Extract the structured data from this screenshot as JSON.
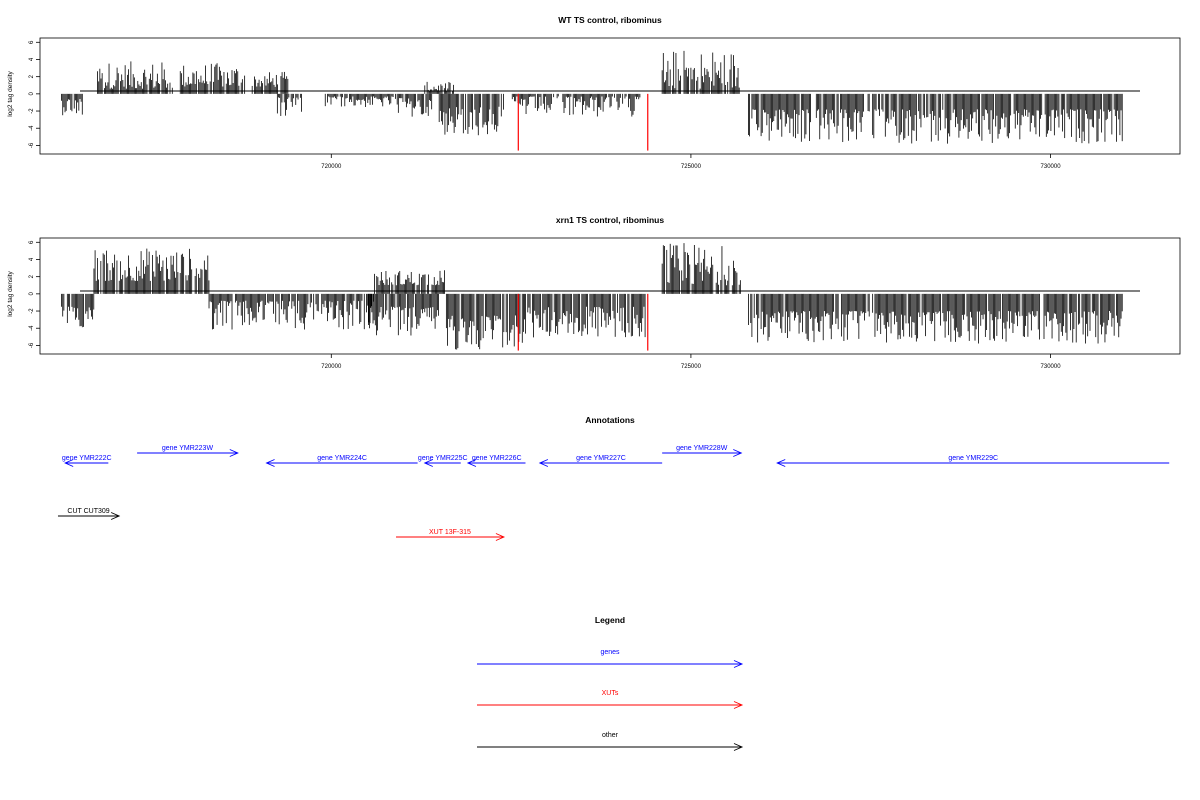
{
  "chart_data": [
    {
      "type": "bar",
      "title": "WT TS control, ribominus",
      "ylabel": "log2 tag density",
      "xlabel": "",
      "ylim": [
        -7,
        6.5
      ],
      "xlim": [
        715950,
        731800
      ],
      "x_ticks": [
        "720000",
        "725000",
        "730000"
      ],
      "y_ticks": [
        "6",
        "4",
        "2",
        "0",
        "-2",
        "-4",
        "-6"
      ],
      "grid": false,
      "baseline": 0,
      "highlight_color": "#ff0000",
      "bar_color": "#000000",
      "series": [
        {
          "segments": [
            {
              "from": 716250,
              "to": 716550,
              "min": -2.5,
              "max": -0.5
            },
            {
              "from": 716750,
              "to": 717800,
              "min": 0.6,
              "max": 3.8
            },
            {
              "from": 717900,
              "to": 718800,
              "min": 0.8,
              "max": 3.6
            },
            {
              "from": 718900,
              "to": 719400,
              "min": 0.8,
              "max": 2.6
            },
            {
              "from": 719250,
              "to": 719600,
              "min": -2.6,
              "max": -0.4
            },
            {
              "from": 719900,
              "to": 720900,
              "min": -1.6,
              "max": -0.3
            },
            {
              "from": 720900,
              "to": 721400,
              "min": -3.0,
              "max": -0.5
            },
            {
              "from": 721300,
              "to": 721700,
              "min": 0.3,
              "max": 1.4
            },
            {
              "from": 721500,
              "to": 722400,
              "min": -5.0,
              "max": -1.5
            },
            {
              "from": 722500,
              "to": 724300,
              "min": -2.8,
              "max": -0.3
            },
            {
              "from": 724600,
              "to": 725700,
              "min": 0.6,
              "max": 5.2
            },
            {
              "from": 725800,
              "to": 731000,
              "min": -5.8,
              "max": -1.8
            }
          ],
          "highlights": [
            {
              "x": 722600,
              "y": -6.6
            },
            {
              "x": 724400,
              "y": -6.6
            }
          ]
        }
      ]
    },
    {
      "type": "bar",
      "title": "xrn1 TS control, ribominus",
      "ylabel": "log2 tag density",
      "xlabel": "",
      "ylim": [
        -7,
        6.5
      ],
      "xlim": [
        715950,
        731800
      ],
      "x_ticks": [
        "720000",
        "725000",
        "730000"
      ],
      "y_ticks": [
        "6",
        "4",
        "2",
        "0",
        "-2",
        "-4",
        "-6"
      ],
      "grid": false,
      "baseline": 0,
      "highlight_color": "#ff0000",
      "bar_color": "#000000",
      "series": [
        {
          "segments": [
            {
              "from": 716250,
              "to": 716700,
              "min": -4.0,
              "max": -1.5
            },
            {
              "from": 716700,
              "to": 718300,
              "min": 1.5,
              "max": 5.4
            },
            {
              "from": 718300,
              "to": 720600,
              "min": -4.2,
              "max": -0.8
            },
            {
              "from": 720600,
              "to": 721600,
              "min": 1.0,
              "max": 2.8
            },
            {
              "from": 720500,
              "to": 721500,
              "min": -5.0,
              "max": -1.5
            },
            {
              "from": 721600,
              "to": 722700,
              "min": -6.6,
              "max": -2.5
            },
            {
              "from": 722700,
              "to": 724400,
              "min": -5.2,
              "max": -1.5
            },
            {
              "from": 724600,
              "to": 725700,
              "min": 1.0,
              "max": 5.9
            },
            {
              "from": 725800,
              "to": 731000,
              "min": -5.8,
              "max": -2.0
            }
          ],
          "highlights": [
            {
              "x": 722600,
              "y": -6.6
            },
            {
              "x": 724400,
              "y": -6.6
            }
          ]
        }
      ]
    }
  ],
  "annotations": {
    "title": "Annotations",
    "tracks": [
      {
        "label": "gene YMR222C",
        "start": 716300,
        "end": 716900,
        "dir": "left",
        "row": 1,
        "color": "#0000ff"
      },
      {
        "label": "gene YMR223W",
        "start": 717300,
        "end": 718700,
        "dir": "right",
        "row": 0,
        "color": "#0000ff"
      },
      {
        "label": "gene YMR224C",
        "start": 719100,
        "end": 721200,
        "dir": "left",
        "row": 1,
        "color": "#0000ff"
      },
      {
        "label": "gene YMR225C",
        "start": 721300,
        "end": 721800,
        "dir": "left",
        "row": 1,
        "color": "#0000ff"
      },
      {
        "label": "gene YMR226C",
        "start": 721900,
        "end": 722700,
        "dir": "left",
        "row": 1,
        "color": "#0000ff"
      },
      {
        "label": "gene YMR227C",
        "start": 722900,
        "end": 724600,
        "dir": "left",
        "row": 1,
        "color": "#0000ff"
      },
      {
        "label": "gene YMR228W",
        "start": 724600,
        "end": 725700,
        "dir": "right",
        "row": 0,
        "color": "#0000ff"
      },
      {
        "label": "gene YMR229C",
        "start": 726200,
        "end": 731650,
        "dir": "left",
        "row": 1,
        "color": "#0000ff"
      },
      {
        "label": "CUT CUT309",
        "start": 716200,
        "end": 717050,
        "dir": "right",
        "row": 2,
        "color": "#000000"
      },
      {
        "label": "XUT 13F-315",
        "start": 720900,
        "end": 722400,
        "dir": "right",
        "row": 3,
        "color": "#ff0000"
      }
    ]
  },
  "legend": {
    "title": "Legend",
    "items": [
      {
        "label": "genes",
        "color": "#0000ff"
      },
      {
        "label": "XUTs",
        "color": "#ff0000"
      },
      {
        "label": "other",
        "color": "#000000"
      }
    ]
  }
}
